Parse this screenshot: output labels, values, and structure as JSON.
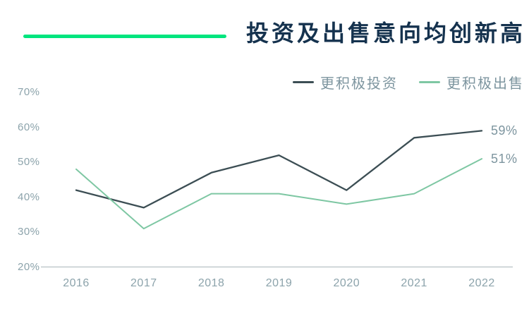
{
  "header": {
    "title": "投资及出售意向均创新高",
    "accent_color": "#00E57E",
    "title_color": "#15324E"
  },
  "chart_data": {
    "type": "line",
    "x": [
      "2016",
      "2017",
      "2018",
      "2019",
      "2020",
      "2021",
      "2022"
    ],
    "series": [
      {
        "name": "更积极投资",
        "values": [
          42,
          37,
          47,
          52,
          42,
          57,
          59
        ],
        "color": "#3C4E54",
        "end_label": "59%"
      },
      {
        "name": "更积极出售",
        "values": [
          48,
          31,
          41,
          41,
          38,
          41,
          51
        ],
        "color": "#7EC7A3",
        "end_label": "51%"
      }
    ],
    "title": "投资及出售意向均创新高",
    "xlabel": "",
    "ylabel": "",
    "ylim": [
      20,
      70
    ],
    "yticks": [
      70,
      60,
      50,
      40,
      30,
      20
    ],
    "ytick_suffix": "%",
    "grid": false,
    "legend_position": "top-right",
    "axis_line_color": "#A9B6BA",
    "axis_text_color": "#8CA3AB",
    "value_label_color": "#7D959F"
  }
}
